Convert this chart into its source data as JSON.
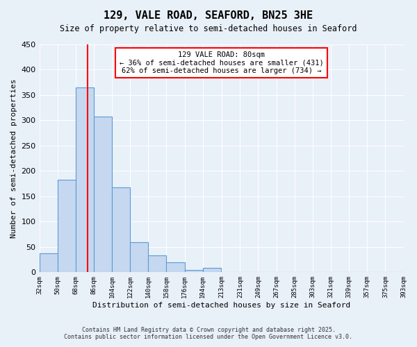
{
  "title": "129, VALE ROAD, SEAFORD, BN25 3HE",
  "subtitle": "Size of property relative to semi-detached houses in Seaford",
  "xlabel": "Distribution of semi-detached houses by size in Seaford",
  "ylabel": "Number of semi-detached properties",
  "bins": [
    32,
    50,
    68,
    86,
    104,
    122,
    140,
    158,
    176,
    194,
    213,
    231,
    249,
    267,
    285,
    303,
    321,
    339,
    357,
    375,
    393
  ],
  "counts": [
    38,
    183,
    365,
    307,
    167,
    60,
    33,
    19,
    5,
    8,
    0,
    0,
    0,
    0,
    0,
    0,
    0,
    0,
    0,
    0
  ],
  "bin_labels": [
    "32sqm",
    "50sqm",
    "68sqm",
    "86sqm",
    "104sqm",
    "122sqm",
    "140sqm",
    "158sqm",
    "176sqm",
    "194sqm",
    "213sqm",
    "231sqm",
    "249sqm",
    "267sqm",
    "285sqm",
    "303sqm",
    "321sqm",
    "339sqm",
    "357sqm",
    "375sqm",
    "393sqm"
  ],
  "bar_color": "#c5d8f0",
  "bar_edge_color": "#5b9bd5",
  "property_value": 80,
  "property_bin_index": 2,
  "vline_x": 80,
  "vline_color": "red",
  "annotation_title": "129 VALE ROAD: 80sqm",
  "annotation_line1": "← 36% of semi-detached houses are smaller (431)",
  "annotation_line2": "62% of semi-detached houses are larger (734) →",
  "annotation_box_color": "red",
  "ylim": [
    0,
    450
  ],
  "yticks": [
    0,
    50,
    100,
    150,
    200,
    250,
    300,
    350,
    400,
    450
  ],
  "background_color": "#e8f0f8",
  "grid_color": "white",
  "footer_line1": "Contains HM Land Registry data © Crown copyright and database right 2025.",
  "footer_line2": "Contains public sector information licensed under the Open Government Licence v3.0."
}
